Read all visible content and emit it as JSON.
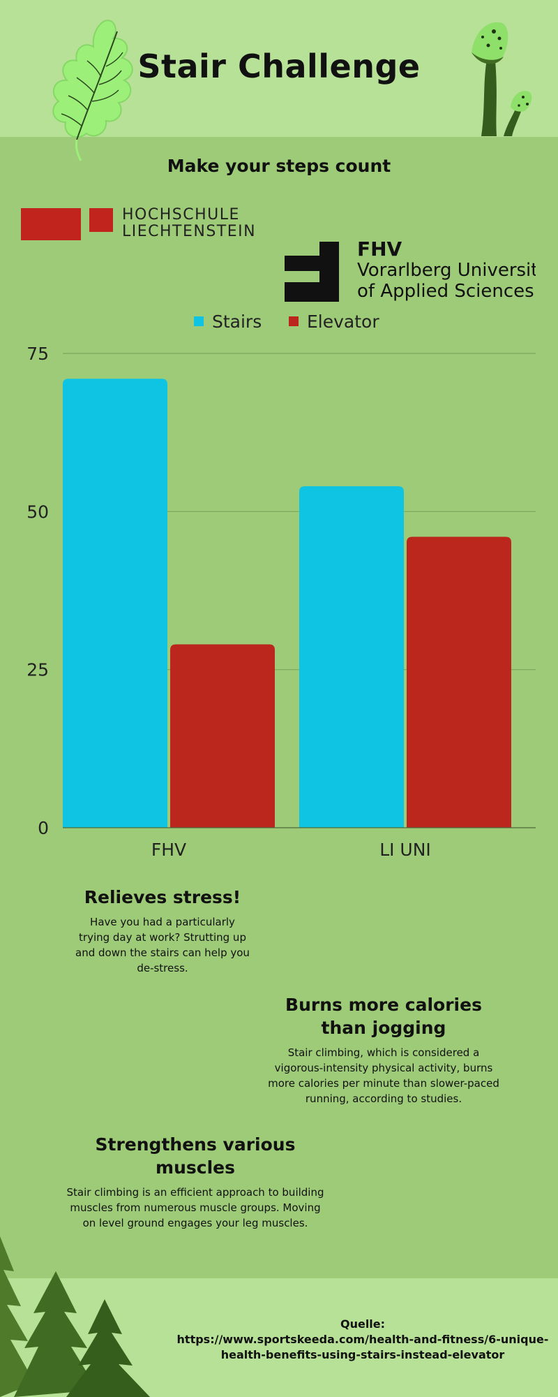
{
  "header": {
    "title": "Stair Challenge",
    "subtitle": "Make your steps count"
  },
  "logos": {
    "hochschule": {
      "line1": "HOCHSCHULE",
      "line2": "LIECHTENSTEIN"
    },
    "fhv": {
      "line1": "FHV",
      "line2": "Vorarlberg University",
      "line3": "of Applied Sciences"
    }
  },
  "colors": {
    "stairs": "#0ec4e2",
    "elevator": "#bb261d",
    "grid": "#7aa85a",
    "background": "#9ecb78"
  },
  "chart_data": {
    "type": "bar",
    "categories": [
      "FHV",
      "LI UNI"
    ],
    "series": [
      {
        "name": "Stairs",
        "values": [
          71,
          54
        ]
      },
      {
        "name": "Elevator",
        "values": [
          29,
          46
        ]
      }
    ],
    "yticks": [
      "0",
      "25",
      "50",
      "75"
    ],
    "ylim": [
      0,
      75
    ],
    "grid": true,
    "legend": "top-center"
  },
  "sections": [
    {
      "heading": "Relieves stress!",
      "body": "Have you had a particularly trying day at work? Strutting up and down the stairs can help you de-stress."
    },
    {
      "heading": "Burns more calories than jogging",
      "body": "Stair climbing, which is considered a vigorous-intensity physical activity, burns more calories per minute than slower-paced running, according to studies."
    },
    {
      "heading": "Strengthens various muscles",
      "body": "Stair climbing is an efficient approach to building muscles from numerous muscle groups. Moving on level ground engages your leg muscles."
    }
  ],
  "footer": {
    "source_label": "Quelle:",
    "source_url": "https://www.sportskeeda.com/health-and-fitness/6-unique-health-benefits-using-stairs-instead-elevator"
  }
}
